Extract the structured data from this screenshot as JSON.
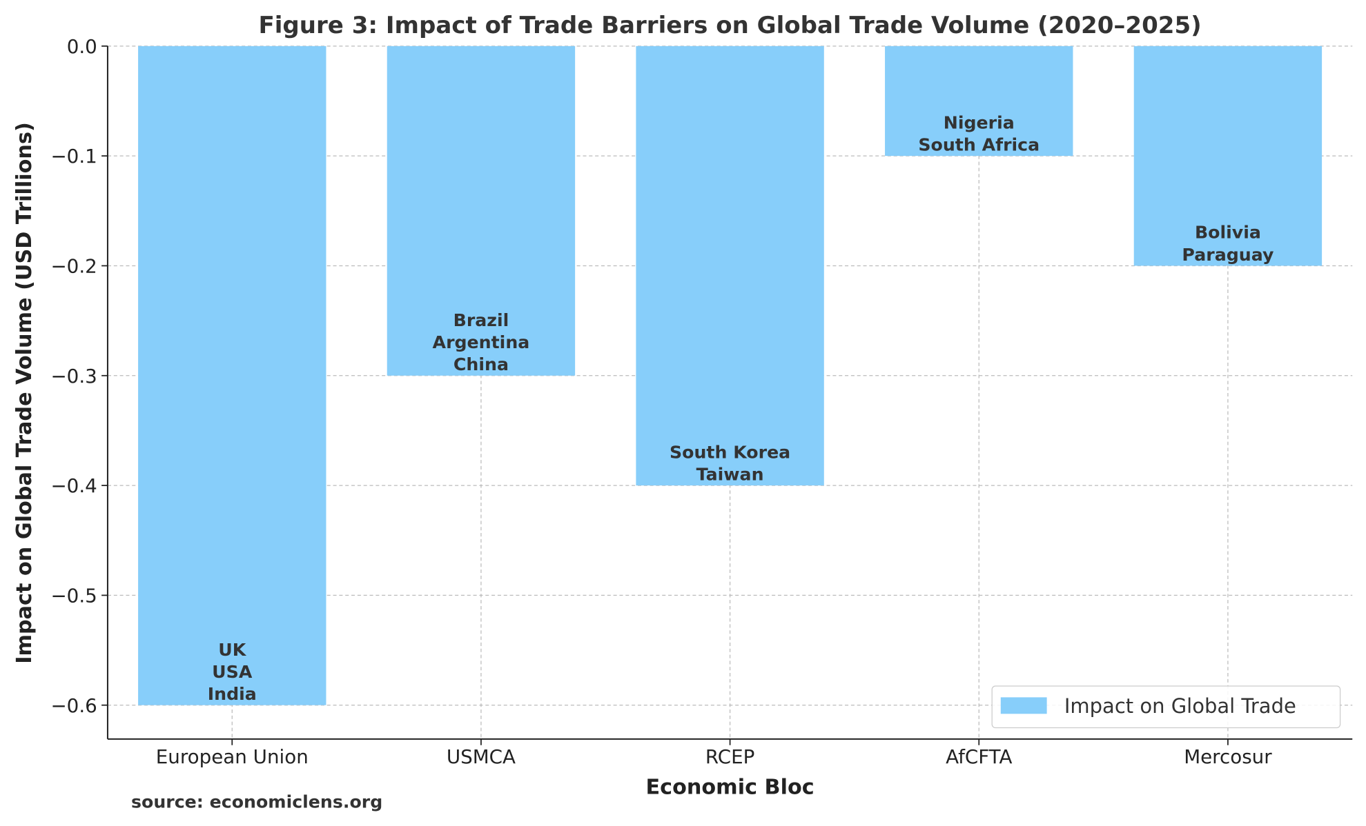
{
  "chart_data": {
    "type": "bar",
    "title": "Figure 3: Impact of Trade Barriers on Global Trade Volume (2020–2025)",
    "xlabel": "Economic Bloc",
    "ylabel": "Impact on Global Trade Volume (USD Trillions)",
    "categories": [
      "European Union",
      "USMCA",
      "RCEP",
      "AfCFTA",
      "Mercosur"
    ],
    "values": [
      -0.6,
      -0.3,
      -0.4,
      -0.1,
      -0.2
    ],
    "bar_labels": [
      [
        "UK",
        "USA",
        "India"
      ],
      [
        "Brazil",
        "Argentina",
        "China"
      ],
      [
        "South Korea",
        "Taiwan"
      ],
      [
        "Nigeria",
        "South Africa"
      ],
      [
        "Bolivia",
        "Paraguay"
      ]
    ],
    "yticks": [
      "0.0",
      "−0.1",
      "−0.2",
      "−0.3",
      "−0.4",
      "−0.5",
      "−0.6"
    ],
    "ytick_values": [
      0,
      -0.1,
      -0.2,
      -0.3,
      -0.4,
      -0.5,
      -0.6
    ],
    "ylim": [
      -0.63,
      0
    ],
    "grid": true,
    "legend": {
      "entries": [
        "Impact on Global Trade"
      ],
      "placement": "lower-right"
    },
    "bar_color": "#87CEFA",
    "source": "source: economiclens.org"
  }
}
